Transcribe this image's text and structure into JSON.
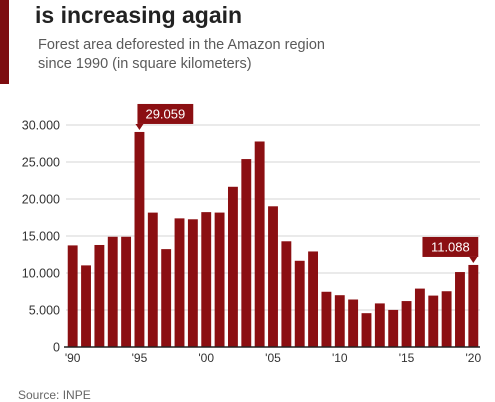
{
  "header": {
    "title": "is increasing again",
    "subtitle_line1": "Forest area deforested in the Amazon region",
    "subtitle_line2": "since 1990 (in square kilometers)"
  },
  "source": "Source: INPE",
  "colors": {
    "bar": "#8b0f12",
    "accent": "#7d0d10",
    "grid": "#d6d6d6",
    "axis": "#222222"
  },
  "chart_data": {
    "type": "bar",
    "title": "is increasing again",
    "subtitle": "Forest area deforested in the Amazon region since 1990 (in square kilometers)",
    "x": [
      1990,
      1991,
      1992,
      1993,
      1994,
      1995,
      1996,
      1997,
      1998,
      1999,
      2000,
      2001,
      2002,
      2003,
      2004,
      2005,
      2006,
      2007,
      2008,
      2009,
      2010,
      2011,
      2012,
      2013,
      2014,
      2015,
      2016,
      2017,
      2018,
      2019,
      2020
    ],
    "values": [
      13730,
      11030,
      13786,
      14896,
      14896,
      29059,
      18161,
      13227,
      17383,
      17259,
      18226,
      18165,
      21651,
      25396,
      27772,
      19014,
      14286,
      11651,
      12911,
      7464,
      7000,
      6418,
      4571,
      5891,
      5012,
      6207,
      7893,
      6947,
      7536,
      10129,
      11088
    ],
    "ylim": [
      0,
      32000
    ],
    "yticks": [
      0,
      5000,
      10000,
      15000,
      20000,
      25000,
      30000
    ],
    "ytick_labels": [
      "0",
      "5.000",
      "10.000",
      "15.000",
      "20.000",
      "25.000",
      "30.000"
    ],
    "xtick_years": [
      1990,
      1995,
      2000,
      2005,
      2010,
      2015,
      2020
    ],
    "xtick_labels": [
      "'90",
      "'95",
      "'00",
      "'05",
      "'10",
      "'15",
      "'20"
    ],
    "annotations": [
      {
        "year": 1995,
        "label": "29.059"
      },
      {
        "year": 2020,
        "label": "11.088"
      }
    ],
    "grid": true,
    "xlabel": "",
    "ylabel": ""
  }
}
